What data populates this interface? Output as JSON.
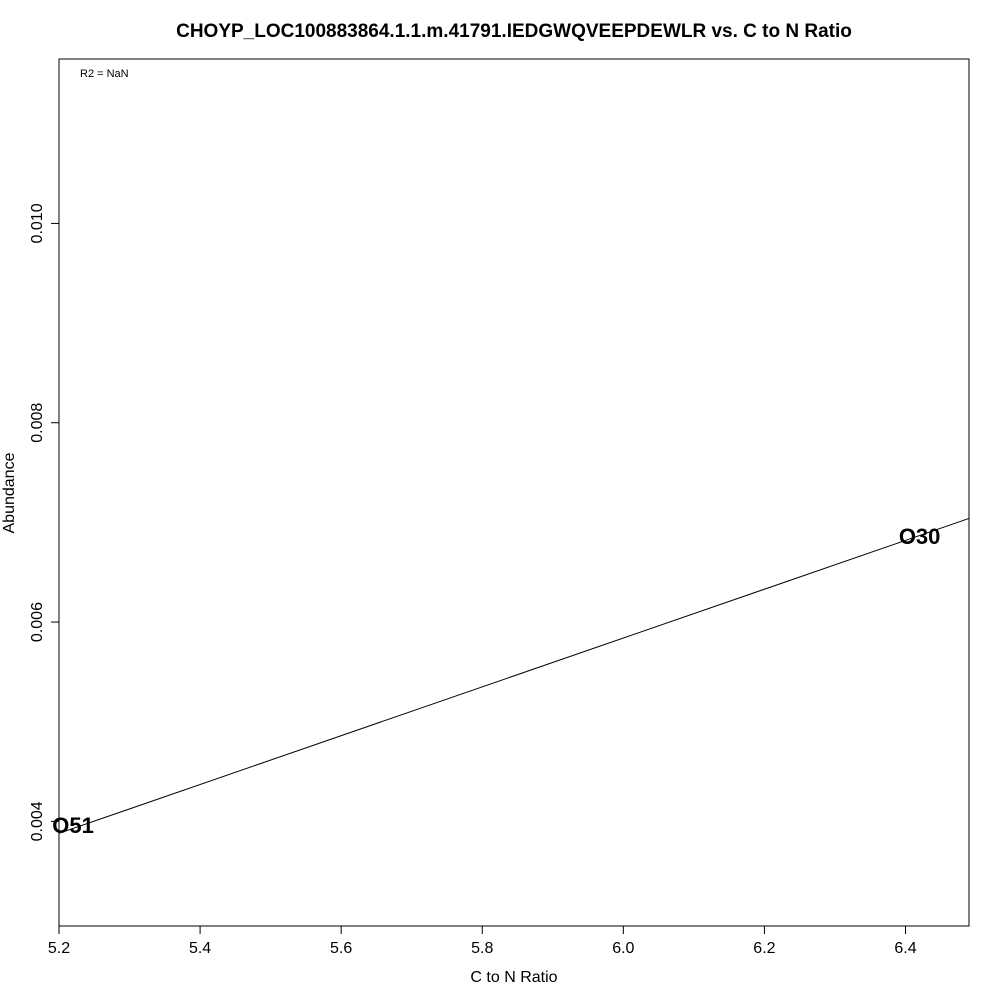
{
  "chart_data": {
    "type": "scatter",
    "title": "CHOYP_LOC100883864.1.1.m.41791.IEDGWQVEEPDEWLR vs. C to N Ratio",
    "xlabel": "C to N Ratio",
    "ylabel": "Abundance",
    "annotation": "R2 = NaN",
    "xlim": [
      5.2,
      6.49
    ],
    "ylim": [
      0.00295,
      0.01165
    ],
    "x_ticks": [
      5.2,
      5.4,
      5.6,
      5.8,
      6.0,
      6.2,
      6.4
    ],
    "x_tick_labels": [
      "5.2",
      "5.4",
      "5.6",
      "5.8",
      "6.0",
      "6.2",
      "6.4"
    ],
    "y_ticks": [
      0.004,
      0.006,
      0.008,
      0.01
    ],
    "y_tick_labels": [
      "0.004",
      "0.006",
      "0.008",
      "0.010"
    ],
    "points": [
      {
        "label": "O51",
        "x": 5.22,
        "y": 0.00396
      },
      {
        "label": "O30",
        "x": 6.42,
        "y": 0.00686
      }
    ],
    "fit_line": {
      "x": [
        5.2,
        6.49
      ],
      "y": [
        0.00388,
        0.00704
      ]
    },
    "grid": false
  }
}
